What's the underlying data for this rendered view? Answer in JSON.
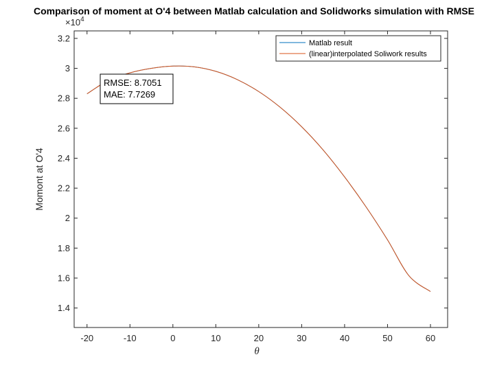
{
  "chart_data": {
    "type": "line",
    "title": "Comparison of moment at O'4 between Matlab calculation and Solidworks simulation with RMSE",
    "xlabel": "θ",
    "ylabel": "Momont at O'4",
    "y_exponent_label": "×10",
    "y_exponent_power": "4",
    "xlim": [
      -23,
      64
    ],
    "ylim": [
      12700,
      32500
    ],
    "xticks": [
      -20,
      -10,
      0,
      10,
      20,
      30,
      40,
      50,
      60
    ],
    "xtick_labels": [
      "-20",
      "-10",
      "0",
      "10",
      "20",
      "30",
      "40",
      "50",
      "60"
    ],
    "yticks": [
      14000,
      16000,
      18000,
      20000,
      22000,
      24000,
      26000,
      28000,
      30000,
      32000
    ],
    "ytick_labels": [
      "1.4",
      "1.6",
      "1.8",
      "2",
      "2.2",
      "2.4",
      "2.6",
      "2.8",
      "3",
      "3.2"
    ],
    "grid": false,
    "legend_position": "top-right",
    "series": [
      {
        "name": "Matlab result",
        "color": "#0072bd",
        "x": [
          -20,
          -15,
          -10,
          -5,
          0,
          5,
          10,
          15,
          20,
          25,
          30,
          35,
          40,
          45,
          50,
          55,
          60
        ],
        "y": [
          28300,
          29200,
          29700,
          30000,
          30150,
          30100,
          29800,
          29250,
          28450,
          27400,
          26100,
          24550,
          22750,
          20750,
          18550,
          16150,
          15100
        ]
      },
      {
        "name": "(linear)interpolated Soliwork results",
        "color": "#d95319",
        "x": [
          -20,
          -15,
          -10,
          -5,
          0,
          5,
          10,
          15,
          20,
          25,
          30,
          35,
          40,
          45,
          50,
          55,
          60
        ],
        "y": [
          28300,
          29200,
          29700,
          30000,
          30150,
          30100,
          29800,
          29250,
          28450,
          27400,
          26100,
          24550,
          22750,
          20750,
          18550,
          16150,
          15100
        ]
      }
    ],
    "annotation_lines": [
      "RMSE: 8.7051",
      "MAE: 7.7269"
    ]
  }
}
